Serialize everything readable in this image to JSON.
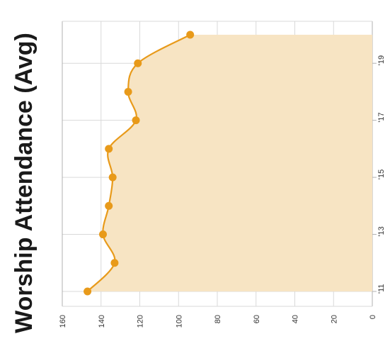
{
  "chart_data": {
    "type": "area",
    "title": "Worship Attendance (Avg)",
    "xlabel": "",
    "ylabel": "",
    "x": [
      "'11",
      "'12",
      "'13",
      "'14",
      "'15",
      "'16",
      "'17",
      "'18",
      "'19",
      "'20"
    ],
    "x_tick_labels": [
      "'11",
      "'13",
      "'15",
      "'17",
      "'19"
    ],
    "values": [
      147,
      133,
      139,
      136,
      134,
      136,
      122,
      126,
      121,
      94
    ],
    "ylim": [
      0,
      160
    ],
    "y_ticks": [
      0,
      20,
      40,
      60,
      80,
      100,
      120,
      140,
      160
    ],
    "grid": true,
    "orientation": "rotated-90-clockwise",
    "colors": {
      "line": "#e89a1a",
      "fill": "#f7e4c3",
      "grid": "#d9d9d9"
    }
  }
}
